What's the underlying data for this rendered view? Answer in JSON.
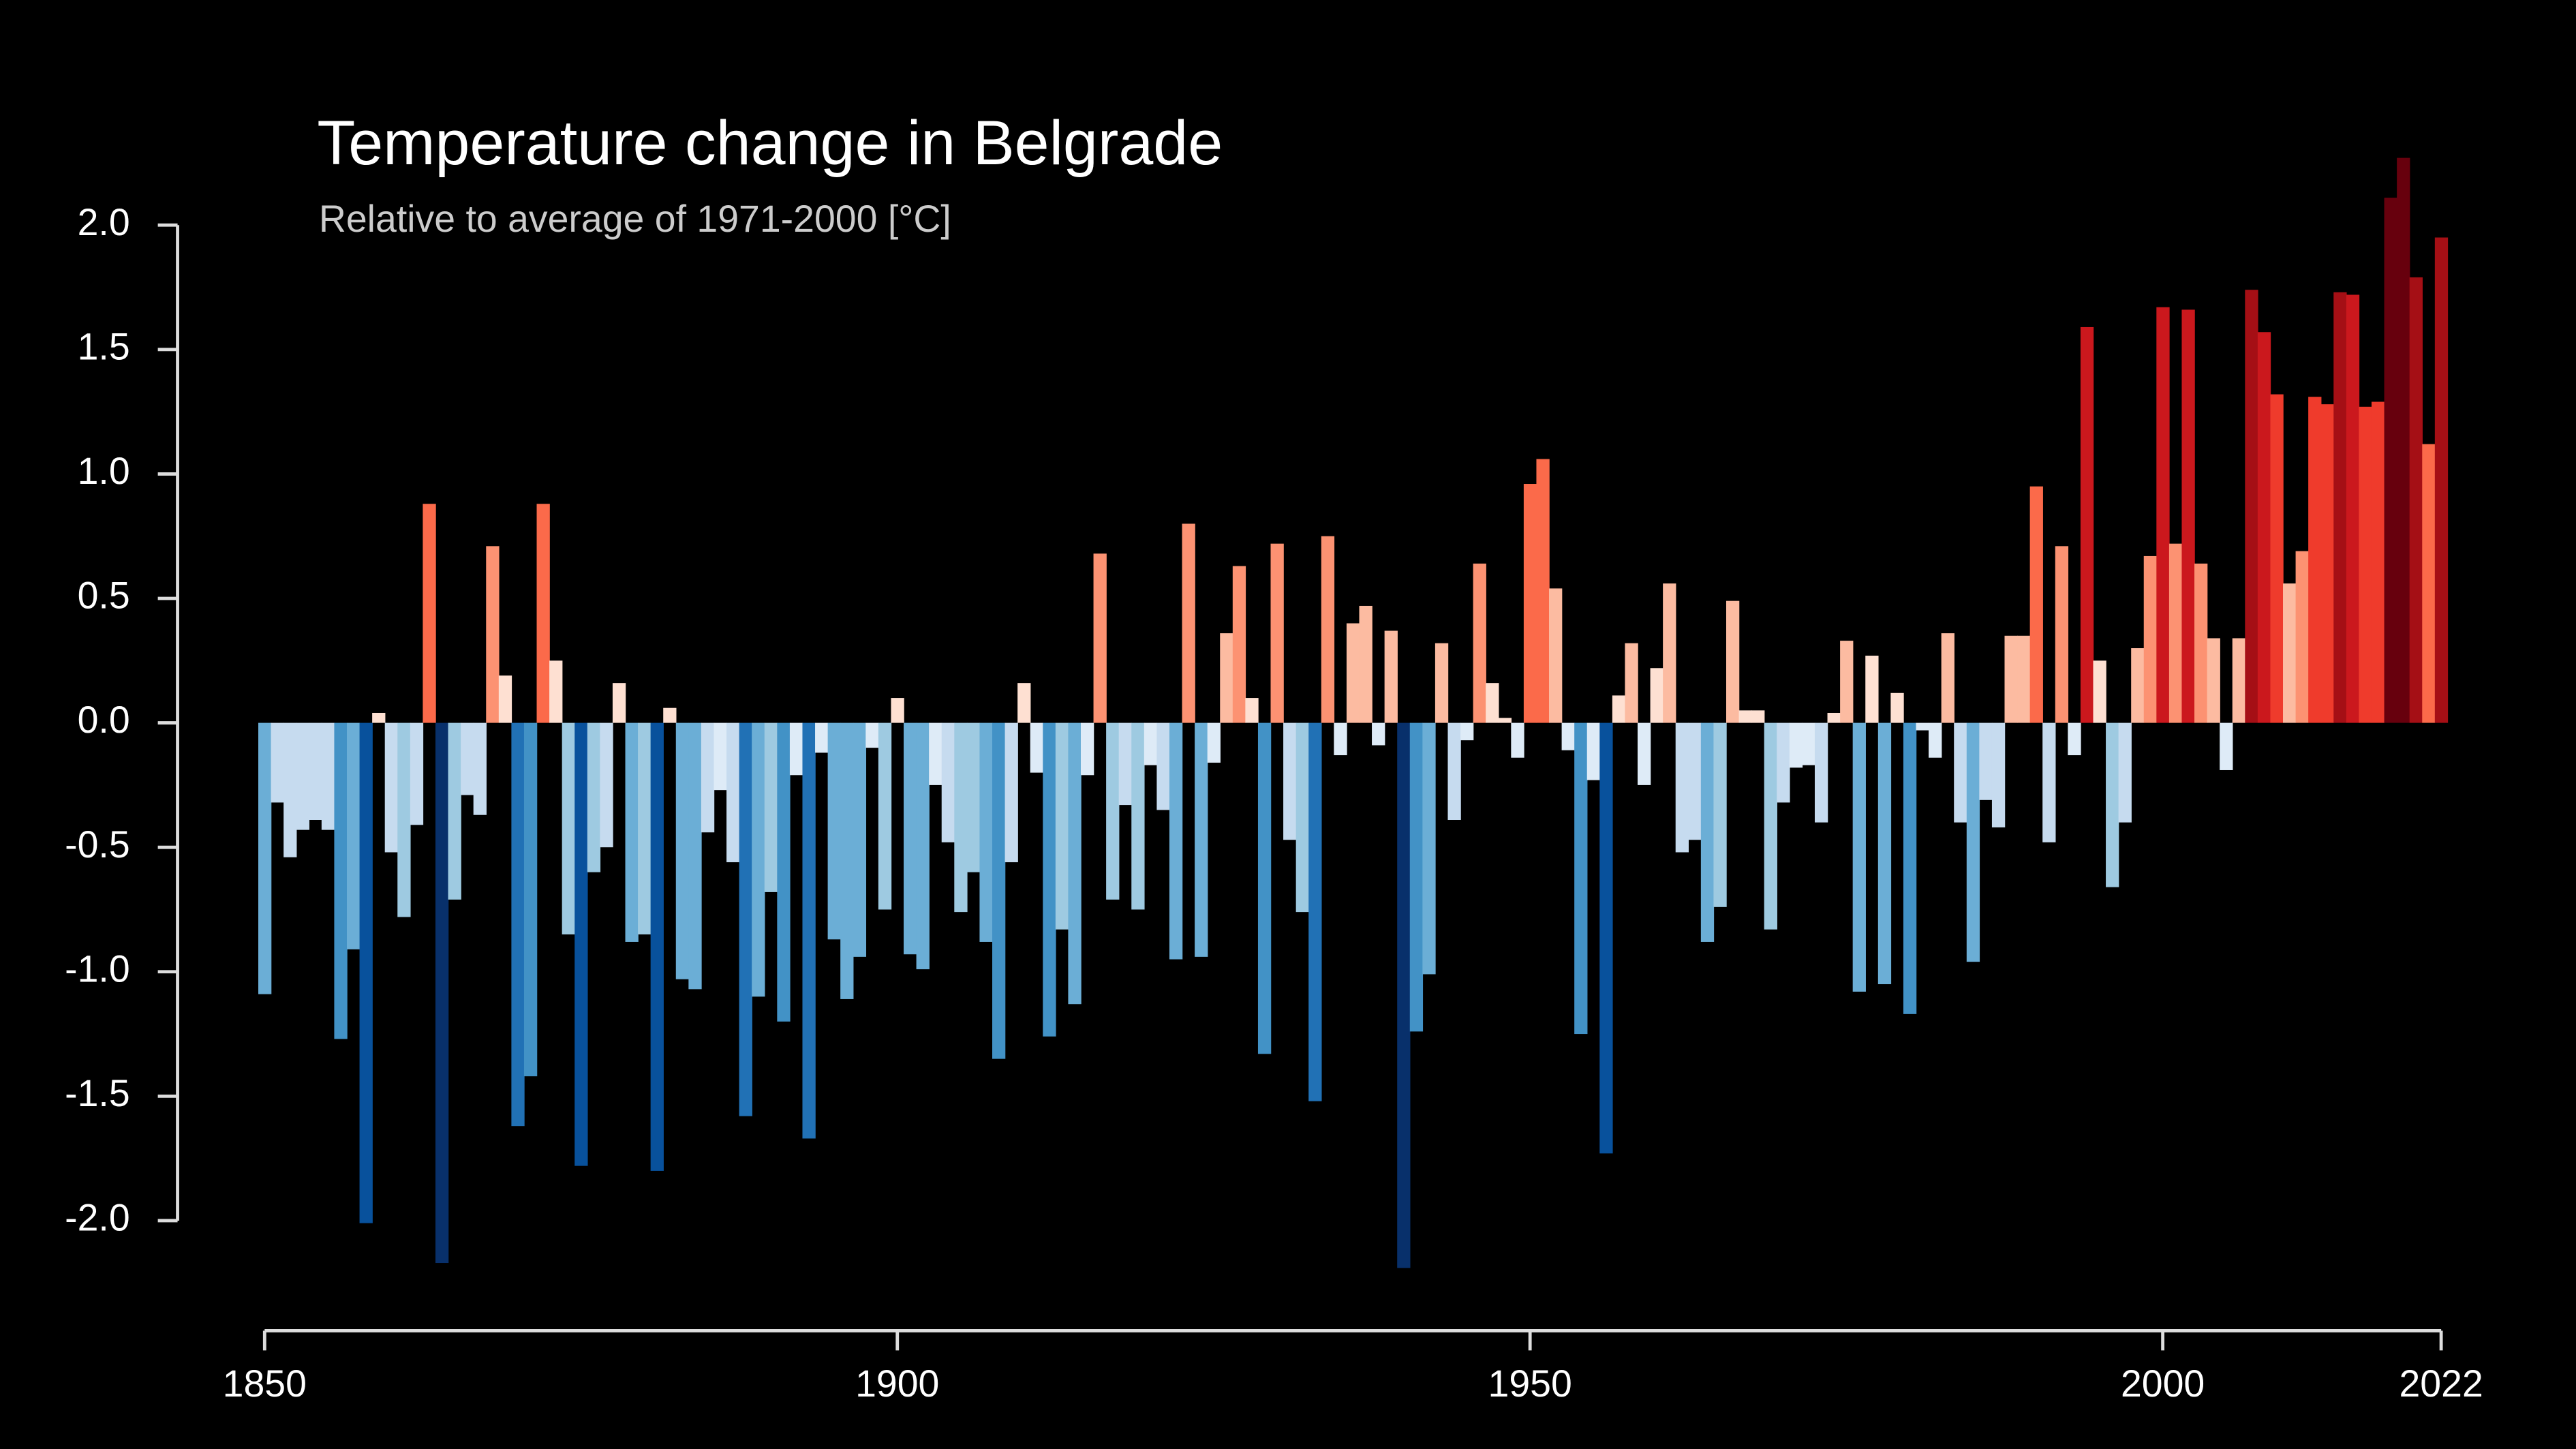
{
  "chart_data": {
    "type": "bar",
    "title": "Temperature change in Belgrade",
    "subtitle": "Relative to average of 1971-2000  [°C]",
    "x": [
      1850,
      1851,
      1852,
      1853,
      1854,
      1855,
      1856,
      1857,
      1858,
      1859,
      1860,
      1861,
      1862,
      1863,
      1864,
      1865,
      1866,
      1867,
      1868,
      1869,
      1870,
      1871,
      1872,
      1873,
      1874,
      1875,
      1876,
      1877,
      1878,
      1879,
      1880,
      1881,
      1882,
      1883,
      1884,
      1885,
      1886,
      1887,
      1888,
      1889,
      1890,
      1891,
      1892,
      1893,
      1894,
      1895,
      1896,
      1897,
      1898,
      1899,
      1900,
      1901,
      1902,
      1903,
      1904,
      1905,
      1906,
      1907,
      1908,
      1909,
      1910,
      1911,
      1912,
      1913,
      1914,
      1915,
      1916,
      1917,
      1918,
      1919,
      1920,
      1921,
      1922,
      1923,
      1924,
      1925,
      1926,
      1927,
      1928,
      1929,
      1930,
      1931,
      1932,
      1933,
      1934,
      1935,
      1936,
      1937,
      1938,
      1939,
      1940,
      1941,
      1942,
      1943,
      1944,
      1945,
      1946,
      1947,
      1948,
      1949,
      1950,
      1951,
      1952,
      1953,
      1954,
      1955,
      1956,
      1957,
      1958,
      1959,
      1960,
      1961,
      1962,
      1963,
      1964,
      1965,
      1966,
      1967,
      1968,
      1969,
      1970,
      1971,
      1972,
      1973,
      1974,
      1975,
      1976,
      1977,
      1978,
      1979,
      1980,
      1981,
      1982,
      1983,
      1984,
      1985,
      1986,
      1987,
      1988,
      1989,
      1990,
      1991,
      1992,
      1993,
      1994,
      1995,
      1996,
      1997,
      1998,
      1999,
      2000,
      2001,
      2002,
      2003,
      2004,
      2005,
      2006,
      2007,
      2008,
      2009,
      2010,
      2011,
      2012,
      2013,
      2014,
      2015,
      2016,
      2017,
      2018,
      2019,
      2020,
      2021,
      2022
    ],
    "values": [
      -1.09,
      -0.32,
      -0.54,
      -0.43,
      -0.39,
      -0.43,
      -1.27,
      -0.91,
      -2.01,
      0.04,
      -0.52,
      -0.78,
      -0.41,
      0.88,
      -2.17,
      -0.71,
      -0.29,
      -0.37,
      0.71,
      0.19,
      -1.62,
      -1.42,
      0.88,
      0.25,
      -0.85,
      -1.78,
      -0.6,
      -0.5,
      0.16,
      -0.88,
      -0.85,
      -1.8,
      0.06,
      -1.03,
      -1.07,
      -0.44,
      -0.27,
      -0.56,
      -1.58,
      -1.1,
      -0.68,
      -1.2,
      -0.21,
      -1.67,
      -0.12,
      -0.87,
      -1.11,
      -0.94,
      -0.1,
      -0.75,
      0.1,
      -0.93,
      -0.99,
      -0.25,
      -0.48,
      -0.76,
      -0.6,
      -0.88,
      -1.35,
      -0.56,
      0.16,
      -0.2,
      -1.26,
      -0.83,
      -1.13,
      -0.21,
      0.68,
      -0.71,
      -0.33,
      -0.75,
      -0.17,
      -0.35,
      -0.95,
      0.8,
      -0.94,
      -0.16,
      0.36,
      0.63,
      0.1,
      -1.33,
      0.72,
      -0.47,
      -0.76,
      -1.52,
      0.75,
      -0.13,
      0.4,
      0.47,
      -0.09,
      0.37,
      -2.19,
      -1.24,
      -1.01,
      0.32,
      -0.39,
      -0.07,
      0.64,
      0.16,
      0.02,
      -0.14,
      0.96,
      1.06,
      0.54,
      -0.11,
      -1.25,
      -0.23,
      -1.73,
      0.11,
      0.32,
      -0.25,
      0.22,
      0.56,
      -0.52,
      -0.47,
      -0.88,
      -0.74,
      0.49,
      0.05,
      0.05,
      -0.83,
      -0.32,
      -0.18,
      -0.17,
      -0.4,
      0.04,
      0.33,
      -1.08,
      0.27,
      -1.05,
      0.12,
      -1.17,
      -0.03,
      -0.14,
      0.36,
      -0.4,
      -0.96,
      -0.31,
      -0.42,
      0.35,
      0.35,
      0.95,
      -0.48,
      0.71,
      -0.13,
      1.59,
      0.25,
      -0.66,
      -0.4,
      0.3,
      0.67,
      1.67,
      0.72,
      1.66,
      0.64,
      0.34,
      -0.19,
      0.34,
      1.74,
      1.57,
      1.32,
      0.56,
      0.69,
      1.31,
      1.28,
      1.73,
      1.72,
      1.27,
      1.29,
      2.11,
      2.27,
      1.79,
      1.12,
      1.95
    ],
    "colorscale": [
      "#08306b",
      "#08519c",
      "#2171b5",
      "#4292c6",
      "#6baed6",
      "#9ecae1",
      "#c6dbef",
      "#deebf7",
      "#fee0d2",
      "#fcbba1",
      "#fc9272",
      "#fb6a4a",
      "#ef3b2c",
      "#cb181d",
      "#a50f15",
      "#67000d"
    ],
    "xlim": [
      1850,
      2022
    ],
    "xticks": [
      1850,
      1900,
      1950,
      2000,
      2022
    ],
    "ylim": [
      -2.3,
      2.3
    ],
    "yticks": [
      {
        "value": 2,
        "label": "2.0"
      },
      1.5,
      {
        "value": 1,
        "label": "1.0"
      },
      0.5,
      {
        "value": 0,
        "label": "0.0"
      },
      -0.5,
      {
        "value": -1,
        "label": "-1.0"
      },
      -1.5,
      {
        "value": -2,
        "label": "-2.0"
      }
    ]
  }
}
